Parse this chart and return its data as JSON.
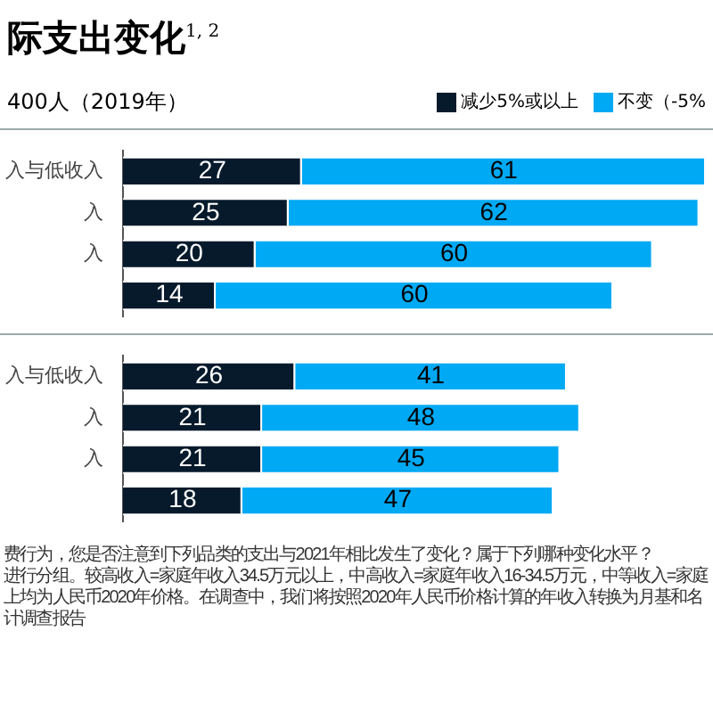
{
  "chart_data": [
    {
      "type": "bar",
      "orientation": "horizontal",
      "stacked": true,
      "title": "际支出变化$^{1, 2}$",
      "subtitle": "400人（2019年）",
      "categories": [
        "入与低收入",
        "入",
        "入",
        null
      ],
      "legend": "top right",
      "data_labels": true,
      "series": [
        {
          "name": "减少5%或以上",
          "color": "#061a2c",
          "values": [
            27,
            25,
            20,
            14
          ]
        },
        {
          "name": "不变（-5%",
          "color": "#00a9f4",
          "values": [
            61,
            62,
            60,
            60
          ]
        }
      ]
    },
    {
      "type": "bar",
      "orientation": "horizontal",
      "stacked": true,
      "categories": [
        "入与低收入",
        "入",
        "入",
        null
      ],
      "data_labels": true,
      "annotations": [
        "费行为，您是否注意到下列品类的支出与2021年相比发生了变化？属于下列哪种变化水平？",
        "进行分组。较高收入=家庭年收入34.5万元以上，中高收入=家庭年收入16-34.5万元，中等收入=家庭",
        "上均为人民币2020年价格。在调查中，我们将按照2020年人民币价格计算的年收入转换为月基和名",
        "计调查报告"
      ],
      "series": [
        {
          "color": "#061a2c",
          "values": [
            26,
            21,
            21,
            18
          ]
        },
        {
          "color": "#00a9f4",
          "values": [
            41,
            48,
            45,
            47
          ]
        }
      ]
    }
  ]
}
